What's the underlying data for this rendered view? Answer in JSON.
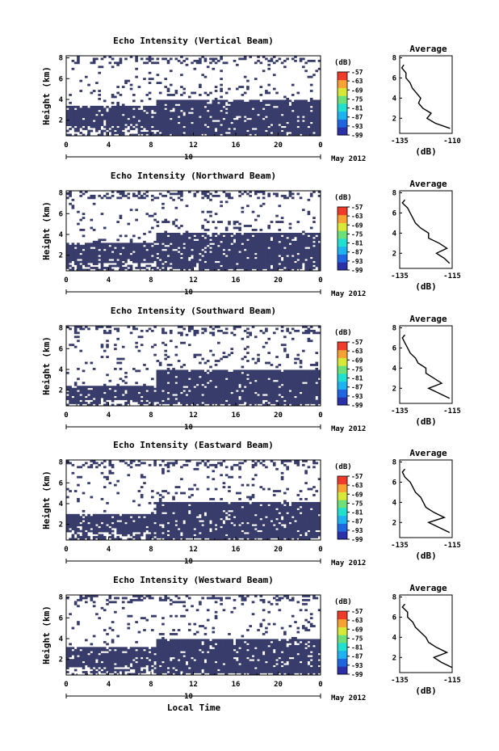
{
  "figure": {
    "xlabel": "Local Time",
    "date_label": "May 2012"
  },
  "chart_data": [
    {
      "type": "heatmap",
      "title": "Echo Intensity (Vertical Beam)",
      "ylabel": "Height (km)",
      "x_ticks": [
        "0",
        "4",
        "8",
        "12",
        "16",
        "20",
        "0"
      ],
      "x_range_hours": [
        0,
        24
      ],
      "day_marker": "10",
      "y_ticks": [
        "2",
        "4",
        "6",
        "8"
      ],
      "y_range_km": [
        0.5,
        8.2
      ],
      "colorbar": {
        "unit": "(dB)",
        "labels": [
          "-57",
          "-63",
          "-69",
          "-75",
          "-81",
          "-87",
          "-93",
          "-99"
        ]
      },
      "strong_echo_layer_km": {
        "before_hour_8_5": [
          1.4,
          3.3
        ],
        "after_hour_8_5": [
          0.5,
          3.9
        ]
      },
      "average_profile": {
        "title": "Average",
        "xlabel": "(dB)",
        "x_ticks": [
          "-135",
          "-110"
        ],
        "y_ticks": [
          "2",
          "4",
          "6",
          "8"
        ],
        "y_km": [
          1.0,
          1.5,
          2.0,
          2.5,
          3.0,
          3.5,
          4.0,
          4.5,
          5.0,
          5.5,
          6.0,
          6.5,
          7.0,
          7.3
        ],
        "x_db": [
          -111,
          -118,
          -122,
          -120,
          -124,
          -126,
          -125,
          -127,
          -129,
          -130,
          -132,
          -132,
          -134,
          -133
        ]
      }
    },
    {
      "type": "heatmap",
      "title": "Echo Intensity (Northward Beam)",
      "ylabel": "Height (km)",
      "x_ticks": [
        "0",
        "4",
        "8",
        "12",
        "16",
        "20",
        "0"
      ],
      "x_range_hours": [
        0,
        24
      ],
      "day_marker": "10",
      "y_ticks": [
        "2",
        "4",
        "6",
        "8"
      ],
      "y_range_km": [
        0.5,
        8.2
      ],
      "colorbar": {
        "unit": "(dB)",
        "labels": [
          "-57",
          "-63",
          "-69",
          "-75",
          "-81",
          "-87",
          "-93",
          "-99"
        ]
      },
      "strong_echo_layer_km": {
        "before_hour_8_5": [
          1.3,
          3.2
        ],
        "after_hour_8_5": [
          0.7,
          4.1
        ]
      },
      "average_profile": {
        "title": "Average",
        "xlabel": "(dB)",
        "x_ticks": [
          "-135",
          "-115"
        ],
        "y_ticks": [
          "2",
          "4",
          "6",
          "8"
        ],
        "y_km": [
          1.0,
          1.5,
          2.0,
          2.5,
          3.0,
          3.5,
          4.0,
          4.5,
          5.0,
          5.5,
          6.0,
          6.5,
          7.0,
          7.3
        ],
        "x_db": [
          -116,
          -118,
          -121,
          -117,
          -120,
          -124,
          -124,
          -127,
          -129,
          -130,
          -131,
          -132,
          -134,
          -133
        ]
      }
    },
    {
      "type": "heatmap",
      "title": "Echo Intensity (Southward Beam)",
      "ylabel": "Height (km)",
      "x_ticks": [
        "0",
        "4",
        "8",
        "12",
        "16",
        "20",
        "0"
      ],
      "x_range_hours": [
        0,
        24
      ],
      "day_marker": "10",
      "y_ticks": [
        "2",
        "4",
        "6",
        "8"
      ],
      "y_range_km": [
        0.5,
        8.2
      ],
      "colorbar": {
        "unit": "(dB)",
        "labels": [
          "-57",
          "-63",
          "-69",
          "-75",
          "-81",
          "-87",
          "-93",
          "-99"
        ]
      },
      "strong_echo_layer_km": {
        "before_hour_8_5": [
          1.0,
          2.4
        ],
        "after_hour_8_5": [
          0.6,
          3.9
        ]
      },
      "average_profile": {
        "title": "Average",
        "xlabel": "(dB)",
        "x_ticks": [
          "-135",
          "-115"
        ],
        "y_ticks": [
          "2",
          "4",
          "6",
          "8"
        ],
        "y_km": [
          1.0,
          1.5,
          2.0,
          2.5,
          3.0,
          3.5,
          4.0,
          4.5,
          5.0,
          5.5,
          6.0,
          6.5,
          7.0,
          7.3
        ],
        "x_db": [
          -116,
          -120,
          -124,
          -119,
          -122,
          -125,
          -125,
          -128,
          -129,
          -131,
          -132,
          -133,
          -134,
          -133
        ]
      }
    },
    {
      "type": "heatmap",
      "title": "Echo Intensity (Eastward Beam)",
      "ylabel": "Height (km)",
      "x_ticks": [
        "0",
        "4",
        "8",
        "12",
        "16",
        "20",
        "0"
      ],
      "x_range_hours": [
        0,
        24
      ],
      "day_marker": "10",
      "y_ticks": [
        "2",
        "4",
        "6",
        "8"
      ],
      "y_range_km": [
        0.5,
        8.2
      ],
      "colorbar": {
        "unit": "(dB)",
        "labels": [
          "-57",
          "-63",
          "-69",
          "-75",
          "-81",
          "-87",
          "-93",
          "-99"
        ]
      },
      "strong_echo_layer_km": {
        "before_hour_8_5": [
          1.2,
          3.0
        ],
        "after_hour_8_5": [
          0.6,
          4.1
        ]
      },
      "average_profile": {
        "title": "Average",
        "xlabel": "(dB)",
        "x_ticks": [
          "-135",
          "-115"
        ],
        "y_ticks": [
          "2",
          "4",
          "6",
          "8"
        ],
        "y_km": [
          1.0,
          1.5,
          2.0,
          2.5,
          3.0,
          3.5,
          4.0,
          4.5,
          5.0,
          5.5,
          6.0,
          6.5,
          7.0,
          7.3
        ],
        "x_db": [
          -116,
          -120,
          -124,
          -118,
          -122,
          -125,
          -126,
          -127,
          -129,
          -130,
          -131,
          -133,
          -134,
          -133
        ]
      }
    },
    {
      "type": "heatmap",
      "title": "Echo Intensity (Westward Beam)",
      "ylabel": "Height (km)",
      "x_ticks": [
        "0",
        "4",
        "8",
        "12",
        "16",
        "20",
        "0"
      ],
      "x_range_hours": [
        0,
        24
      ],
      "day_marker": "10",
      "y_ticks": [
        "2",
        "4",
        "6",
        "8"
      ],
      "y_range_km": [
        0.5,
        8.2
      ],
      "colorbar": {
        "unit": "(dB)",
        "labels": [
          "-57",
          "-63",
          "-69",
          "-75",
          "-81",
          "-87",
          "-93",
          "-99"
        ]
      },
      "strong_echo_layer_km": {
        "before_hour_8_5": [
          1.3,
          3.2
        ],
        "after_hour_8_5": [
          0.6,
          4.0
        ]
      },
      "average_profile": {
        "title": "Average",
        "xlabel": "(dB)",
        "x_ticks": [
          "-135",
          "-115"
        ],
        "y_ticks": [
          "2",
          "4",
          "6",
          "8"
        ],
        "y_km": [
          1.0,
          1.5,
          2.0,
          2.5,
          3.0,
          3.5,
          4.0,
          4.5,
          5.0,
          5.5,
          6.0,
          6.5,
          7.0,
          7.3
        ],
        "x_db": [
          -115,
          -119,
          -122,
          -117,
          -121,
          -124,
          -125,
          -127,
          -129,
          -130,
          -132,
          -132,
          -134,
          -133
        ]
      }
    }
  ]
}
